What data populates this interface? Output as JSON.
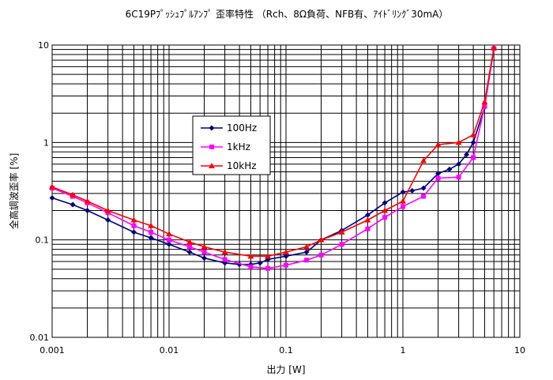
{
  "chart_data": {
    "type": "line",
    "title": "6C19Pﾌﾟｯｼｭﾌﾟﾙｱﾝﾌﾟ 歪率特性 （Rch、8Ω負荷、NFB有、ｱｲﾄﾞﾘﾝｸﾞ30mA）",
    "xlabel": "出力 [W]",
    "ylabel": "全高調波歪率 [%]",
    "x_scale": "log",
    "y_scale": "log",
    "xlim": [
      0.001,
      10
    ],
    "ylim": [
      0.01,
      10
    ],
    "x_ticks": [
      "0.001",
      "0.01",
      "0.1",
      "1",
      "10"
    ],
    "y_ticks": [
      "0.01",
      "0.1",
      "1",
      "10"
    ],
    "grid": true,
    "legend_position": "center-left",
    "series": [
      {
        "name": "100Hz",
        "color": "#000080",
        "marker": "diamond",
        "points": [
          [
            0.001,
            0.27
          ],
          [
            0.0015,
            0.23
          ],
          [
            0.002,
            0.2
          ],
          [
            0.003,
            0.16
          ],
          [
            0.005,
            0.12
          ],
          [
            0.007,
            0.105
          ],
          [
            0.01,
            0.09
          ],
          [
            0.015,
            0.075
          ],
          [
            0.02,
            0.065
          ],
          [
            0.03,
            0.058
          ],
          [
            0.04,
            0.056
          ],
          [
            0.05,
            0.056
          ],
          [
            0.06,
            0.058
          ],
          [
            0.07,
            0.063
          ],
          [
            0.1,
            0.068
          ],
          [
            0.15,
            0.075
          ],
          [
            0.2,
            0.1
          ],
          [
            0.3,
            0.125
          ],
          [
            0.5,
            0.18
          ],
          [
            0.7,
            0.24
          ],
          [
            1,
            0.31
          ],
          [
            1.2,
            0.32
          ],
          [
            1.5,
            0.34
          ],
          [
            2,
            0.48
          ],
          [
            2.5,
            0.53
          ],
          [
            3,
            0.6
          ],
          [
            3.5,
            0.75
          ],
          [
            4,
            1.0
          ],
          [
            5,
            2.3
          ],
          [
            6,
            9.3
          ]
        ]
      },
      {
        "name": "1kHz",
        "color": "#FF00FF",
        "marker": "square",
        "points": [
          [
            0.001,
            0.34
          ],
          [
            0.0015,
            0.28
          ],
          [
            0.002,
            0.24
          ],
          [
            0.003,
            0.19
          ],
          [
            0.005,
            0.14
          ],
          [
            0.007,
            0.12
          ],
          [
            0.01,
            0.1
          ],
          [
            0.015,
            0.085
          ],
          [
            0.02,
            0.075
          ],
          [
            0.03,
            0.063
          ],
          [
            0.05,
            0.053
          ],
          [
            0.07,
            0.051
          ],
          [
            0.1,
            0.055
          ],
          [
            0.15,
            0.062
          ],
          [
            0.2,
            0.07
          ],
          [
            0.3,
            0.09
          ],
          [
            0.5,
            0.13
          ],
          [
            0.7,
            0.17
          ],
          [
            1,
            0.22
          ],
          [
            1.5,
            0.28
          ],
          [
            2,
            0.43
          ],
          [
            3,
            0.44
          ],
          [
            4,
            0.7
          ],
          [
            5,
            2.35
          ],
          [
            6,
            9.2
          ]
        ]
      },
      {
        "name": "10kHz",
        "color": "#FF0000",
        "marker": "triangle",
        "points": [
          [
            0.001,
            0.35
          ],
          [
            0.0015,
            0.29
          ],
          [
            0.002,
            0.25
          ],
          [
            0.003,
            0.2
          ],
          [
            0.005,
            0.16
          ],
          [
            0.007,
            0.14
          ],
          [
            0.01,
            0.115
          ],
          [
            0.015,
            0.095
          ],
          [
            0.02,
            0.085
          ],
          [
            0.03,
            0.075
          ],
          [
            0.05,
            0.068
          ],
          [
            0.07,
            0.068
          ],
          [
            0.1,
            0.075
          ],
          [
            0.15,
            0.085
          ],
          [
            0.2,
            0.1
          ],
          [
            0.3,
            0.12
          ],
          [
            0.5,
            0.16
          ],
          [
            0.7,
            0.2
          ],
          [
            1,
            0.25
          ],
          [
            1.5,
            0.65
          ],
          [
            2,
            0.95
          ],
          [
            3,
            1.0
          ],
          [
            4,
            1.2
          ],
          [
            5,
            2.6
          ],
          [
            6,
            9.4
          ]
        ]
      }
    ]
  }
}
